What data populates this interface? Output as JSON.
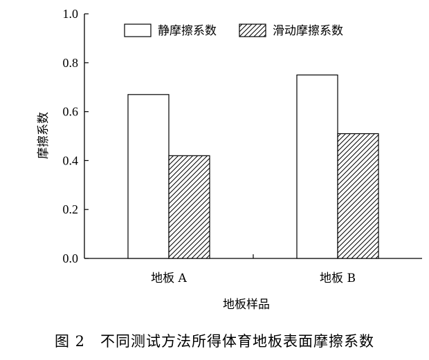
{
  "caption": "图 2　不同测试方法所得体育地板表面摩擦系数",
  "chart_data": {
    "type": "bar",
    "xlabel": "地板样品",
    "ylabel": "摩擦系数",
    "ylim": [
      0.0,
      1.0
    ],
    "yticks": [
      "0.0",
      "0.2",
      "0.4",
      "0.6",
      "0.8",
      "1.0"
    ],
    "categories": [
      "地板 A",
      "地板 B"
    ],
    "legend_position": "top",
    "series": [
      {
        "name": "静摩擦系数",
        "values": [
          0.67,
          0.75
        ],
        "fill": "none"
      },
      {
        "name": "滑动摩擦系数",
        "values": [
          0.42,
          0.51
        ],
        "fill": "hatch"
      }
    ]
  }
}
